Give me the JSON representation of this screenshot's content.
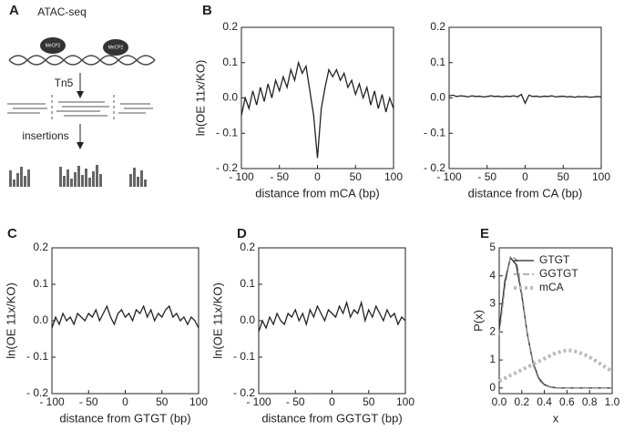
{
  "panel_labels": [
    "A",
    "B",
    "C",
    "D",
    "E"
  ],
  "diagram": {
    "title": "ATAC-seq",
    "proteins": [
      "MeCP2",
      "MeCP2"
    ],
    "enzyme": "Tn5",
    "step": "insertions"
  },
  "chart_data": [
    {
      "type": "line",
      "ylabel": "ln(OE 11x/KO)",
      "xlabel": "distance from mCA (bp)",
      "color": "#222222",
      "x": [
        -100,
        -95,
        -90,
        -85,
        -80,
        -75,
        -70,
        -65,
        -60,
        -55,
        -50,
        -45,
        -40,
        -35,
        -30,
        -25,
        -20,
        -15,
        -10,
        -5,
        0,
        5,
        10,
        15,
        20,
        25,
        30,
        35,
        40,
        45,
        50,
        55,
        60,
        65,
        70,
        75,
        80,
        85,
        90,
        95,
        100
      ],
      "values": [
        -0.05,
        0.0,
        -0.03,
        0.02,
        -0.02,
        0.03,
        -0.01,
        0.04,
        0.0,
        0.05,
        0.02,
        0.06,
        0.03,
        0.08,
        0.05,
        0.1,
        0.07,
        0.09,
        0.02,
        -0.05,
        -0.17,
        -0.03,
        0.03,
        0.08,
        0.06,
        0.08,
        0.05,
        0.07,
        0.03,
        0.05,
        0.01,
        0.04,
        0.0,
        0.03,
        -0.02,
        0.02,
        -0.03,
        0.01,
        -0.04,
        0.0,
        -0.03
      ],
      "xlim": [
        -100,
        100
      ],
      "ylim": [
        -0.2,
        0.2
      ],
      "xticks": [
        {
          "value": -100,
          "label": "- 100"
        },
        {
          "value": -50,
          "label": "- 50"
        },
        0,
        50,
        100
      ],
      "yticks": [
        {
          "value": -0.2,
          "label": "- 0.2"
        },
        {
          "value": -0.1,
          "label": "- 0.1"
        },
        {
          "value": 0,
          "label": "0.0"
        },
        0.1,
        0.2
      ]
    },
    {
      "type": "line",
      "xlabel": "distance from CA (bp)",
      "color": "#222222",
      "x": [
        -100,
        -95,
        -90,
        -85,
        -80,
        -75,
        -70,
        -65,
        -60,
        -55,
        -50,
        -45,
        -40,
        -35,
        -30,
        -25,
        -20,
        -15,
        -10,
        -5,
        0,
        5,
        10,
        15,
        20,
        25,
        30,
        35,
        40,
        45,
        50,
        55,
        60,
        65,
        70,
        75,
        80,
        85,
        90,
        95,
        100
      ],
      "values": [
        0.005,
        0.008,
        0.004,
        0.006,
        0.005,
        0.003,
        0.006,
        0.004,
        0.005,
        0.003,
        0.004,
        0.006,
        0.004,
        0.005,
        0.003,
        0.005,
        0.004,
        0.006,
        0.003,
        0.01,
        -0.015,
        0.008,
        0.004,
        0.005,
        0.003,
        0.005,
        0.004,
        0.006,
        0.003,
        0.004,
        0.005,
        0.003,
        0.004,
        0.002,
        0.004,
        0.003,
        0.004,
        0.002,
        0.003,
        0.004,
        0.003
      ],
      "xlim": [
        -100,
        100
      ],
      "ylim": [
        -0.2,
        0.2
      ],
      "xticks": [
        {
          "value": -100,
          "label": "- 100"
        },
        {
          "value": -50,
          "label": "- 50"
        },
        0,
        50,
        100
      ],
      "yticks": [
        {
          "value": -0.2,
          "label": "- 0.2"
        },
        {
          "value": -0.1,
          "label": "- 0.1"
        },
        {
          "value": 0,
          "label": "0.0"
        },
        0.1,
        0.2
      ]
    },
    {
      "type": "line",
      "ylabel": "ln(OE 11x/KO)",
      "xlabel": "distance from GTGT (bp)",
      "color": "#222222",
      "x": [
        -100,
        -95,
        -90,
        -85,
        -80,
        -75,
        -70,
        -65,
        -60,
        -55,
        -50,
        -45,
        -40,
        -35,
        -30,
        -25,
        -20,
        -15,
        -10,
        -5,
        0,
        5,
        10,
        15,
        20,
        25,
        30,
        35,
        40,
        45,
        50,
        55,
        60,
        65,
        70,
        75,
        80,
        85,
        90,
        95,
        100
      ],
      "values": [
        -0.02,
        0.01,
        -0.01,
        0.02,
        0.0,
        0.01,
        -0.01,
        0.02,
        0.01,
        0.0,
        0.02,
        0.01,
        0.03,
        0.0,
        0.02,
        0.04,
        0.01,
        -0.01,
        0.02,
        0.03,
        0.01,
        0.02,
        0.0,
        0.03,
        0.02,
        0.04,
        0.01,
        0.03,
        0.0,
        0.02,
        0.01,
        0.03,
        0.04,
        0.01,
        0.02,
        0.0,
        0.01,
        -0.01,
        0.01,
        0.0,
        -0.02
      ],
      "xlim": [
        -100,
        100
      ],
      "ylim": [
        -0.2,
        0.2
      ],
      "xticks": [
        {
          "value": -100,
          "label": "- 100"
        },
        {
          "value": -50,
          "label": "- 50"
        },
        0,
        50,
        100
      ],
      "yticks": [
        {
          "value": -0.2,
          "label": "- 0.2"
        },
        {
          "value": -0.1,
          "label": "- 0.1"
        },
        {
          "value": 0,
          "label": "0.0"
        },
        0.1,
        0.2
      ]
    },
    {
      "type": "line",
      "ylabel": "ln(OE 11x/KO)",
      "xlabel": "distance from GGTGT (bp)",
      "color": "#222222",
      "x": [
        -100,
        -95,
        -90,
        -85,
        -80,
        -75,
        -70,
        -65,
        -60,
        -55,
        -50,
        -45,
        -40,
        -35,
        -30,
        -25,
        -20,
        -15,
        -10,
        -5,
        0,
        5,
        10,
        15,
        20,
        25,
        30,
        35,
        40,
        45,
        50,
        55,
        60,
        65,
        70,
        75,
        80,
        85,
        90,
        95,
        100
      ],
      "values": [
        -0.03,
        0.0,
        -0.02,
        0.01,
        -0.01,
        0.02,
        0.0,
        -0.01,
        0.02,
        0.01,
        0.03,
        0.0,
        0.02,
        -0.01,
        0.03,
        0.01,
        0.04,
        0.02,
        0.0,
        0.03,
        0.02,
        0.01,
        0.04,
        0.02,
        0.05,
        0.01,
        0.03,
        0.02,
        0.05,
        0.0,
        0.03,
        0.01,
        0.04,
        0.02,
        0.0,
        0.03,
        0.01,
        0.02,
        -0.01,
        0.01,
        0.0
      ],
      "xlim": [
        -100,
        100
      ],
      "ylim": [
        -0.2,
        0.2
      ],
      "xticks": [
        {
          "value": -100,
          "label": "- 100"
        },
        {
          "value": -50,
          "label": "- 50"
        },
        0,
        50,
        100
      ],
      "yticks": [
        {
          "value": -0.2,
          "label": "- 0.2"
        },
        {
          "value": -0.1,
          "label": "- 0.1"
        },
        {
          "value": 0,
          "label": "0.0"
        },
        0.1,
        0.2
      ]
    },
    {
      "type": "line",
      "ylabel": "P(x)",
      "xlabel": "x",
      "legend": "upper right",
      "x": [
        0,
        0.05,
        0.1,
        0.15,
        0.2,
        0.25,
        0.3,
        0.35,
        0.4,
        0.45,
        0.5,
        0.55,
        0.6,
        0.65,
        0.7,
        0.75,
        0.8,
        0.85,
        0.9,
        0.95,
        1
      ],
      "series": [
        {
          "name": "GTGT",
          "color": "#222222",
          "style": "solid",
          "values": [
            2.1,
            3.8,
            4.65,
            4.4,
            3.3,
            1.9,
            0.9,
            0.35,
            0.12,
            0.04,
            0.01,
            0,
            0,
            0,
            0,
            0,
            0,
            0,
            0,
            0,
            0
          ]
        },
        {
          "name": "GGTGT",
          "color": "#888888",
          "style": "dashed",
          "values": [
            1.9,
            3.6,
            4.7,
            4.6,
            3.4,
            1.9,
            0.85,
            0.3,
            0.1,
            0.03,
            0.01,
            0,
            0,
            0,
            0,
            0,
            0,
            0,
            0,
            0,
            0
          ]
        },
        {
          "name": "mCA",
          "color": "#bbbbbb",
          "style": "dotted",
          "values": [
            0.25,
            0.35,
            0.45,
            0.55,
            0.65,
            0.75,
            0.85,
            0.95,
            1.05,
            1.15,
            1.25,
            1.3,
            1.35,
            1.33,
            1.28,
            1.2,
            1.1,
            0.98,
            0.85,
            0.72,
            0.6
          ]
        }
      ],
      "xlim": [
        0,
        1
      ],
      "ylim": [
        -0.2,
        5
      ],
      "xticks": [
        {
          "value": 0,
          "label": "0.0"
        },
        0.2,
        0.4,
        0.6,
        0.8,
        {
          "value": 1,
          "label": "1.0"
        }
      ],
      "yticks": [
        0,
        1,
        2,
        3,
        4,
        5
      ]
    }
  ]
}
